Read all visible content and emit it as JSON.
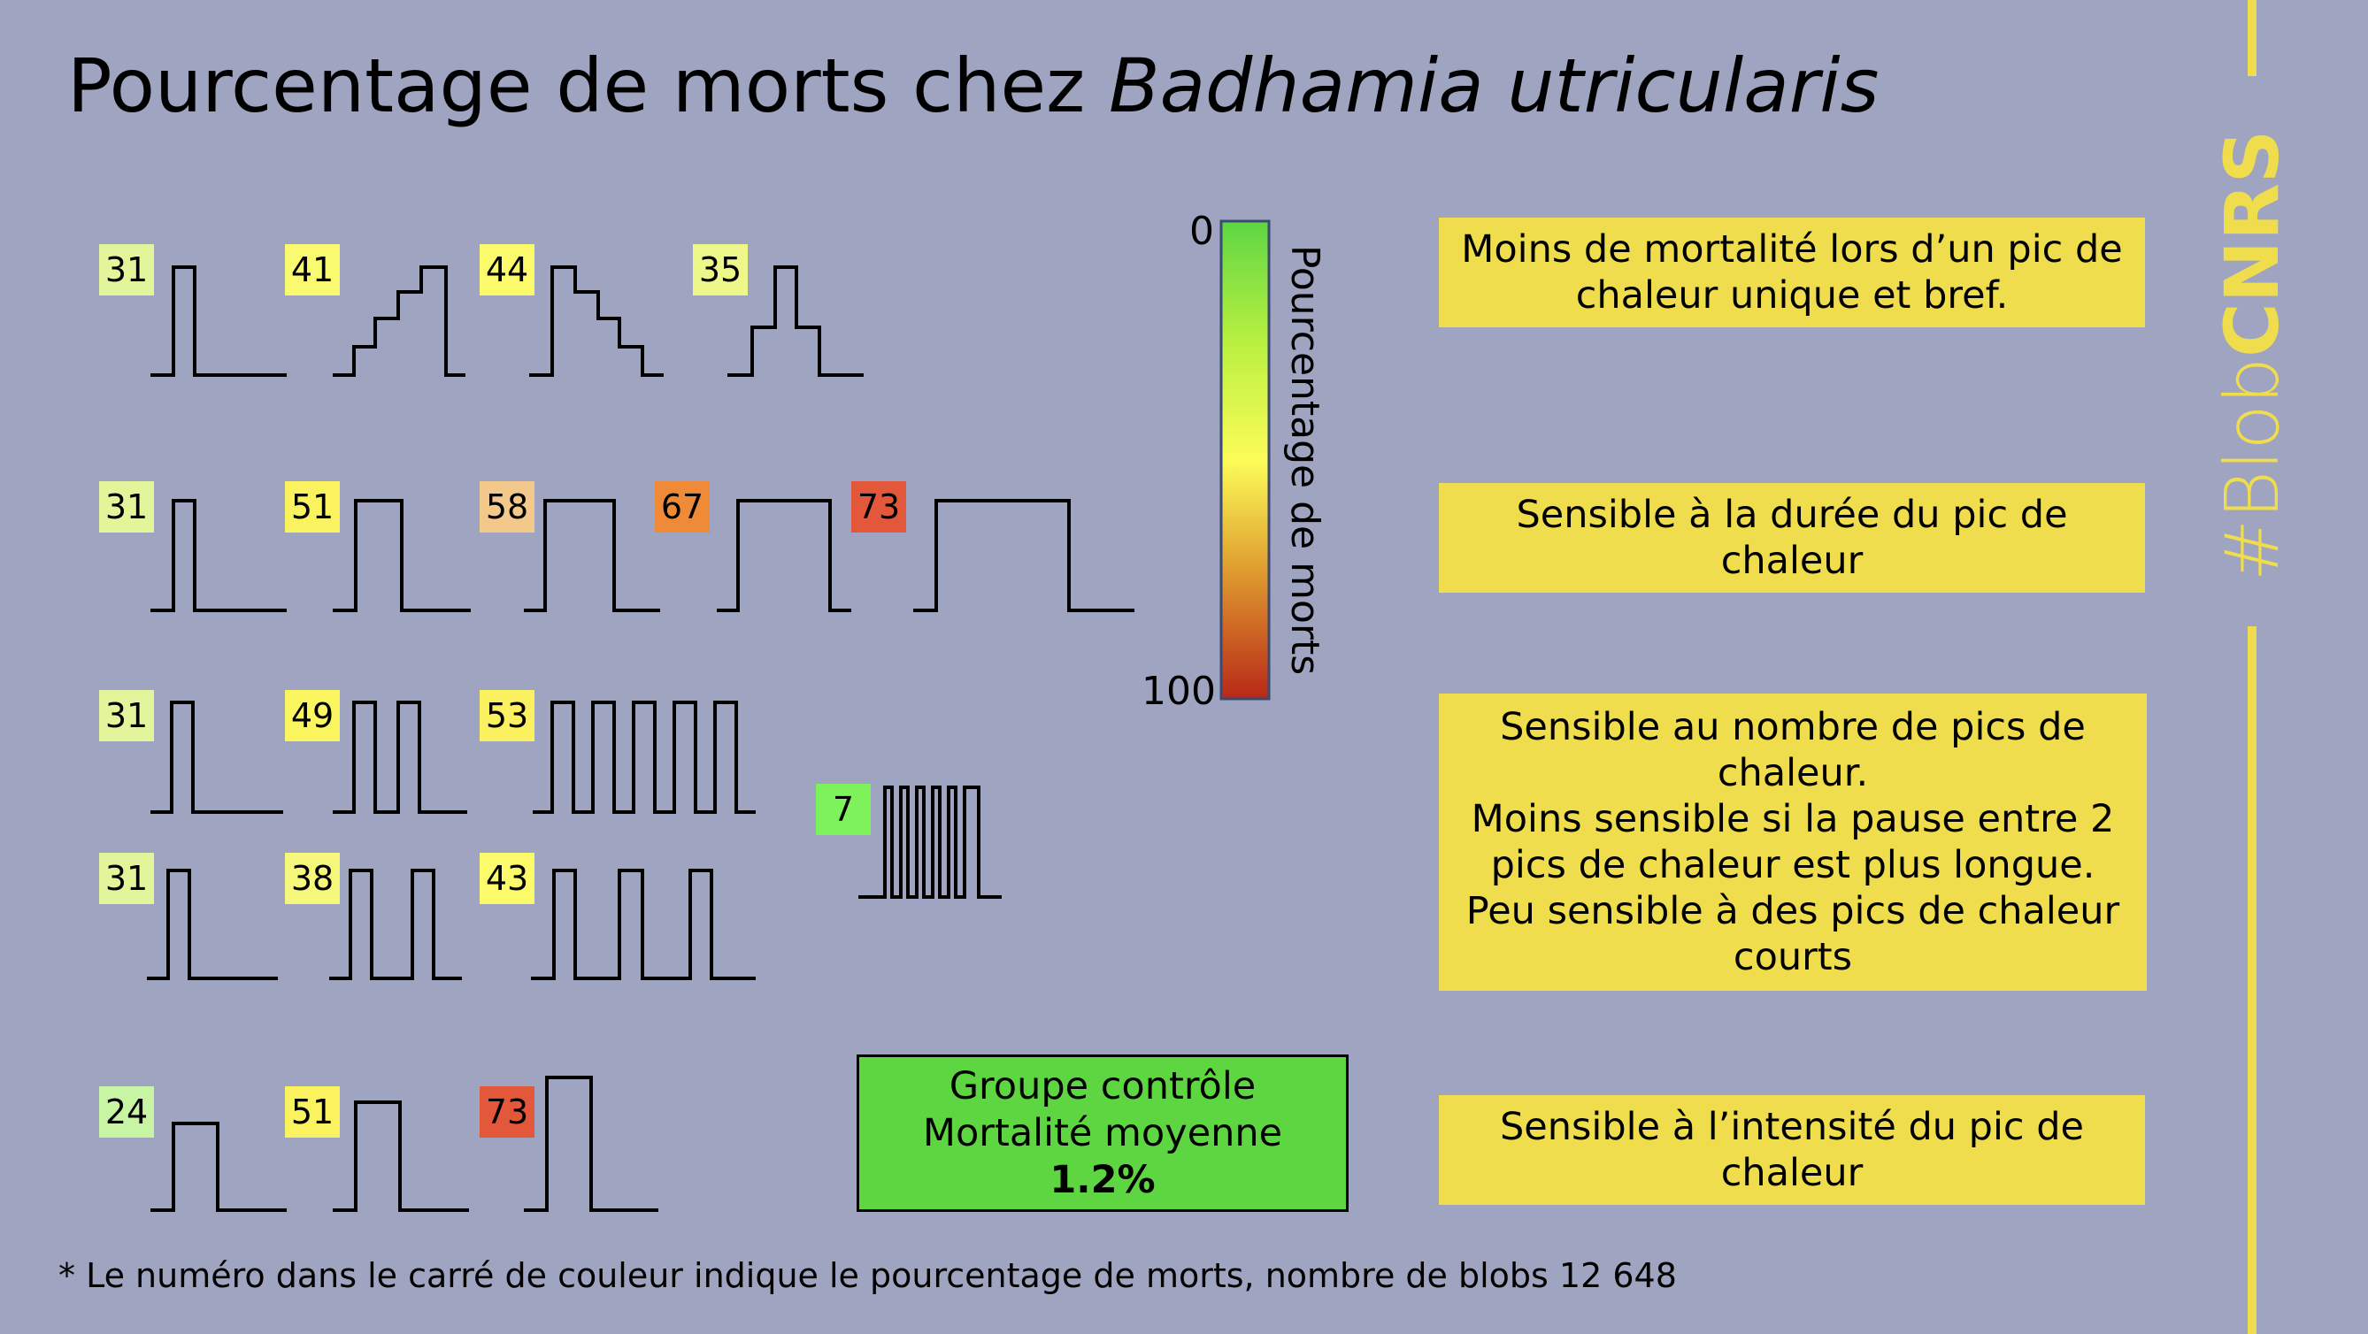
{
  "title": {
    "prefix": "Pourcentage de morts chez",
    "species": "Badhamia utricularis"
  },
  "colorbar": {
    "min_label": "0",
    "max_label": "100",
    "axis_label": "Pourcentage de morts"
  },
  "colors": {
    "background": "#9fa4c0",
    "note_fill": "#f0dd4d",
    "control_fill": "#5ed642",
    "accent": "#f0dd4d"
  },
  "rows": [
    {
      "items": [
        {
          "value": 31,
          "color": "#e3f59a"
        },
        {
          "value": 41,
          "color": "#fafa70"
        },
        {
          "value": 44,
          "color": "#fafa6a"
        },
        {
          "value": 35,
          "color": "#eef78a"
        }
      ]
    },
    {
      "items": [
        {
          "value": 31,
          "color": "#e3f59a"
        },
        {
          "value": 51,
          "color": "#fbf260"
        },
        {
          "value": 58,
          "color": "#f2c98a"
        },
        {
          "value": 67,
          "color": "#ef8b38"
        },
        {
          "value": 73,
          "color": "#e3573a"
        }
      ]
    },
    {
      "items": [
        {
          "value": 31,
          "color": "#e3f59a"
        },
        {
          "value": 49,
          "color": "#fbf560"
        },
        {
          "value": 53,
          "color": "#fbf060"
        },
        {
          "value": 7,
          "color": "#7ef25a"
        }
      ]
    },
    {
      "items": [
        {
          "value": 31,
          "color": "#e3f59a"
        },
        {
          "value": 38,
          "color": "#f6f87c"
        },
        {
          "value": 43,
          "color": "#fafa6a"
        }
      ]
    },
    {
      "items": [
        {
          "value": 24,
          "color": "#c8f5a4"
        },
        {
          "value": 51,
          "color": "#fbf260"
        },
        {
          "value": 73,
          "color": "#e3573a"
        }
      ]
    }
  ],
  "notes": [
    "Moins de mortalité lors d’un pic de chaleur unique et bref.",
    "Sensible à la durée du pic de chaleur",
    "Sensible au nombre de pics de chaleur.\n Moins sensible si la pause entre 2 pics de chaleur est plus longue.\nPeu sensible à des pics de chaleur courts",
    "Sensible à l’intensité du pic de chaleur"
  ],
  "control": {
    "line1": "Groupe contrôle",
    "line2": "Mortalité moyenne",
    "value": "1.2%"
  },
  "footnote": "* Le numéro dans le carré de couleur indique  le  pourcentage  de morts, nombre de blobs 12 648",
  "brand": {
    "light": "#Blob",
    "bold": "CNRS"
  }
}
